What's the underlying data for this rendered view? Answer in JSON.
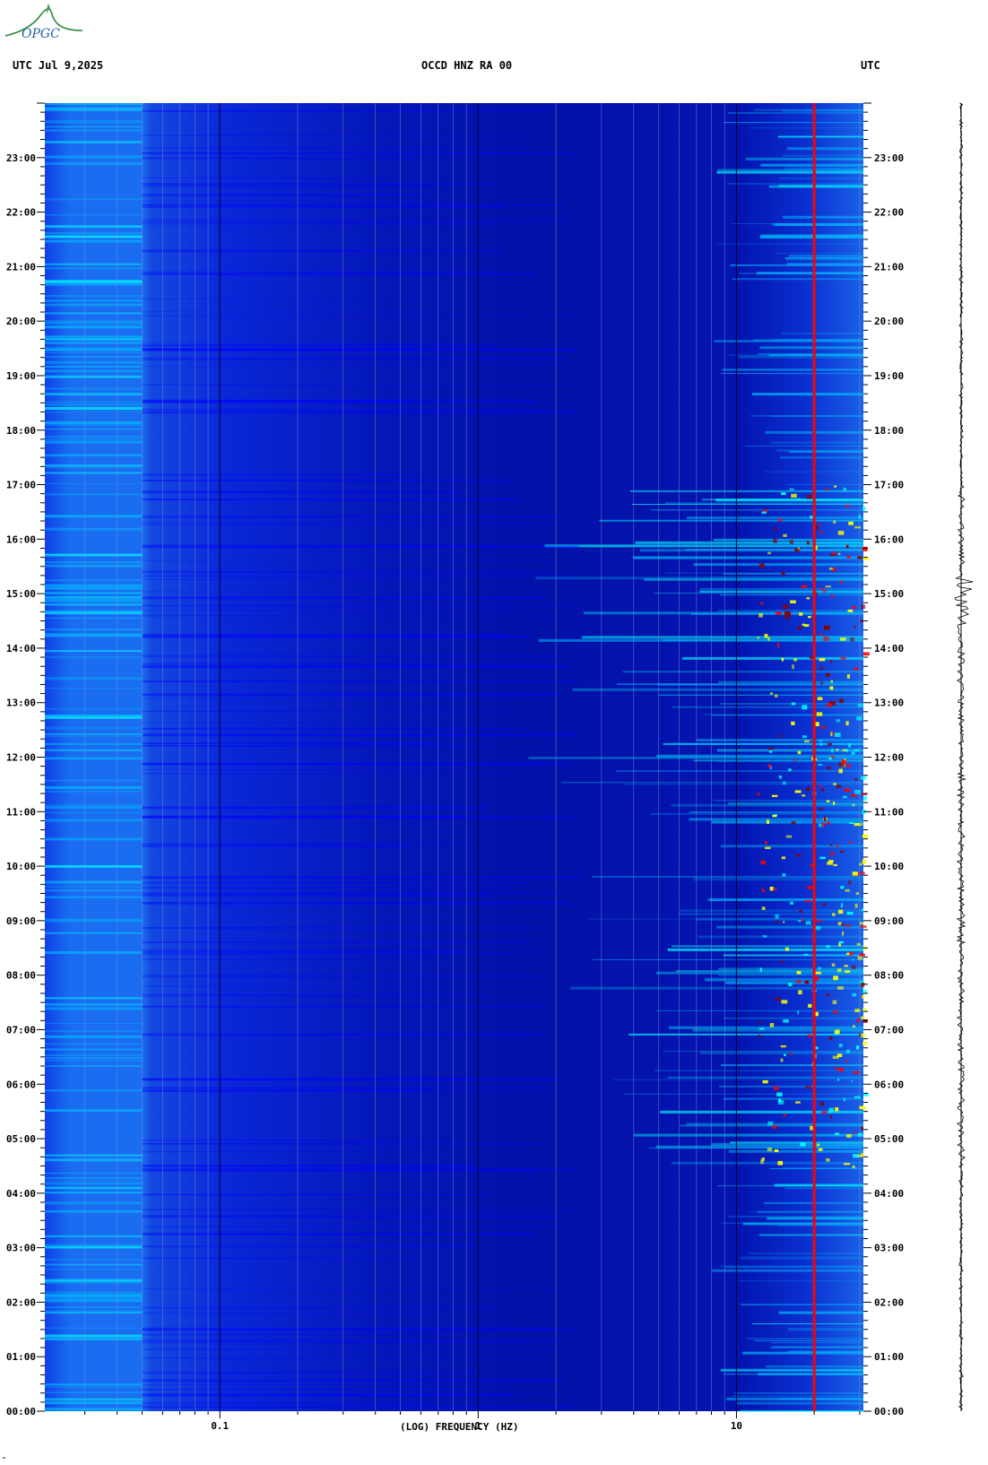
{
  "header": {
    "left": "UTC  Jul 9,2025",
    "center": "OCCD HNZ RA 00",
    "right": "UTC"
  },
  "logo": {
    "text": "OPGC",
    "icon": "opgc-logo-icon",
    "color": "#2e8b3a"
  },
  "chart_data": {
    "type": "heatmap",
    "xlabel": "(LOG) FREQUENCY (HZ)",
    "x_scale": "log",
    "x_tick_labels": [
      {
        "label": "0.1",
        "value": 0.1
      },
      {
        "label": "1",
        "value": 1
      },
      {
        "label": "10",
        "value": 10
      }
    ],
    "xlim_hz": [
      0.021,
      31
    ],
    "y_axis": "time UTC",
    "ylim_hours": [
      0,
      24
    ],
    "y_tick_labels": [
      "00:00",
      "01:00",
      "02:00",
      "03:00",
      "04:00",
      "05:00",
      "06:00",
      "07:00",
      "08:00",
      "09:00",
      "10:00",
      "11:00",
      "12:00",
      "13:00",
      "14:00",
      "15:00",
      "16:00",
      "17:00",
      "18:00",
      "19:00",
      "20:00",
      "21:00",
      "22:00",
      "23:00"
    ],
    "grid": true,
    "colormap": [
      "#00008b",
      "#0000ff",
      "#00bfff",
      "#00ffff",
      "#ffff00",
      "#ff0000",
      "#8b0000"
    ],
    "persistent_line_hz": 20,
    "high_activity_hours": [
      4.5,
      17
    ]
  },
  "trace": {
    "color": "#000000"
  },
  "footer": {
    "mark": "\""
  }
}
